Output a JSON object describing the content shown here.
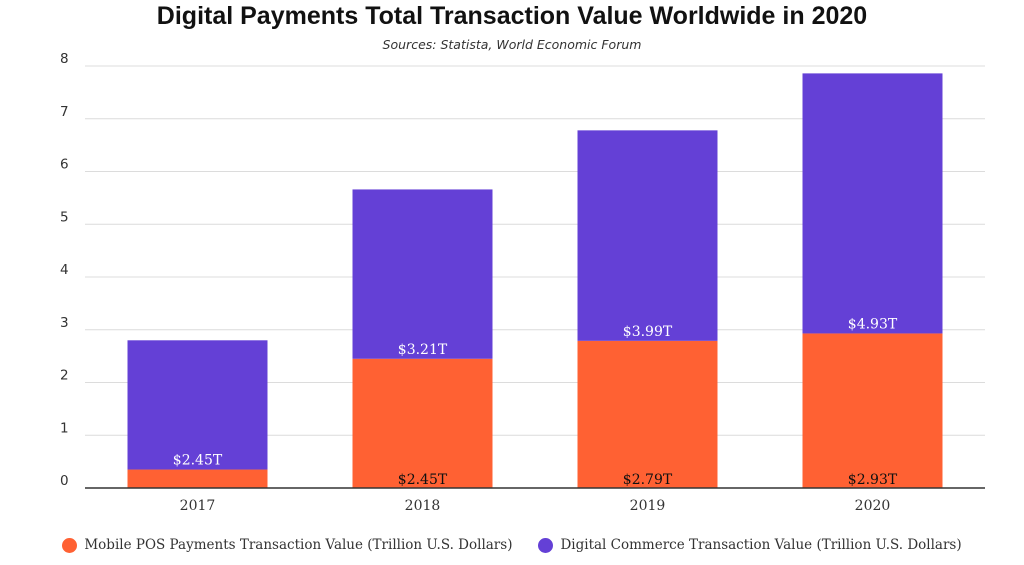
{
  "chart_data": {
    "type": "bar",
    "stacked": true,
    "title": "Digital Payments Total Transaction Value Worldwide in 2020",
    "subtitle": "Sources: Statista, World Economic Forum",
    "categories": [
      "2017",
      "2018",
      "2019",
      "2020"
    ],
    "ylim": [
      0,
      8
    ],
    "yticks": [
      "0",
      "1",
      "2",
      "3",
      "4",
      "5",
      "6",
      "7",
      "8"
    ],
    "grid": true,
    "legend_position": "bottom",
    "series": [
      {
        "name": "Mobile POS Payments Transaction Value (Trillion U.S. Dollars)",
        "color": "#ff6133",
        "values": [
          0.35,
          2.45,
          2.79,
          2.93
        ],
        "labels": [
          "",
          "$2.45T",
          "$2.79T",
          "$2.93T"
        ]
      },
      {
        "name": "Digital Commerce Transaction Value (Trillion U.S. Dollars)",
        "color": "#6440d6",
        "values": [
          2.45,
          3.21,
          3.99,
          4.93
        ],
        "labels": [
          "$2.45T",
          "$3.21T",
          "$3.99T",
          "$4.93T"
        ]
      }
    ]
  }
}
